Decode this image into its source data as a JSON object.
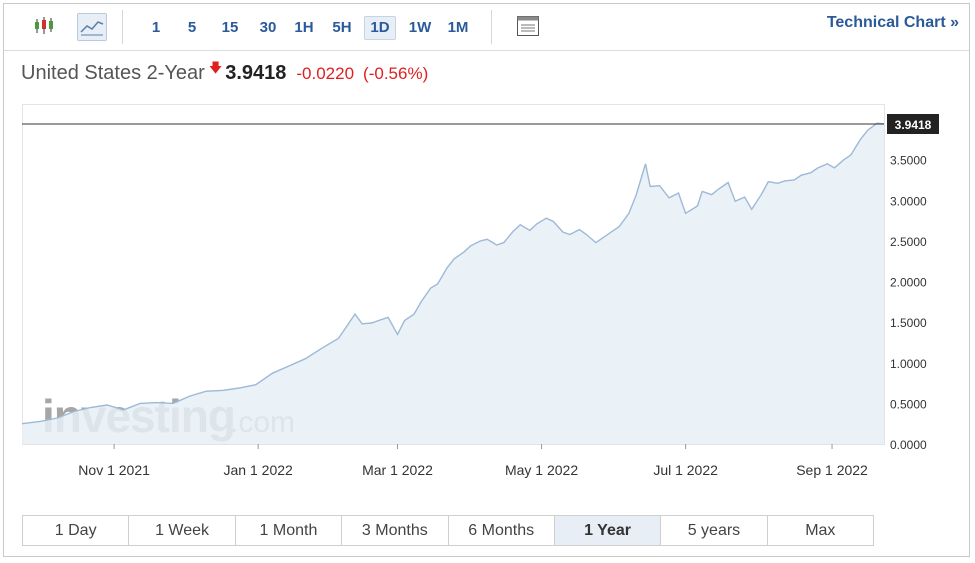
{
  "toolbar": {
    "timeframes": [
      "1",
      "5",
      "15",
      "30",
      "1H",
      "5H",
      "1D",
      "1W",
      "1M"
    ],
    "active_timeframe": "1D",
    "technical_chart_label": "Technical Chart »"
  },
  "quote": {
    "name": "United States 2-Year",
    "last": "3.9418",
    "change": "-0.0220",
    "change_pct": "(-0.56%)",
    "direction": "down"
  },
  "watermark": {
    "brand": "investing",
    "suffix": ".com"
  },
  "ranges": {
    "items": [
      "1 Day",
      "1 Week",
      "1 Month",
      "3 Months",
      "6 Months",
      "1 Year",
      "5 years",
      "Max"
    ],
    "active": "1 Year"
  },
  "colors": {
    "accent": "#2a5a9a",
    "down": "#e01f1f",
    "line": "#9db9d8",
    "fill": "#e6eef6"
  },
  "chart_data": {
    "type": "area",
    "xlabel": "",
    "ylabel": "",
    "ylim": [
      0,
      3.94
    ],
    "y_ticks": [
      "0.0000",
      "0.5000",
      "1.0000",
      "1.5000",
      "2.0000",
      "2.5000",
      "3.0000",
      "3.5000"
    ],
    "x_ticks": [
      "Nov 1 2021",
      "Jan 1 2022",
      "Mar 1 2022",
      "May 1 2022",
      "Jul 1 2022",
      "Sep 1 2022"
    ],
    "x_tick_dates": [
      "2021-11-01",
      "2022-01-01",
      "2022-03-01",
      "2022-05-01",
      "2022-07-01",
      "2022-09-01"
    ],
    "x_range": [
      "2021-09-23",
      "2022-09-23"
    ],
    "last_value_label": "3.9418",
    "series": [
      {
        "x": [
          "2021-09-23",
          "2021-10-01",
          "2021-10-08",
          "2021-10-15",
          "2021-10-22",
          "2021-10-29",
          "2021-11-05",
          "2021-11-12",
          "2021-11-19",
          "2021-11-26",
          "2021-12-03",
          "2021-12-10",
          "2021-12-17",
          "2021-12-24",
          "2021-12-31",
          "2022-01-07",
          "2022-01-14",
          "2022-01-21",
          "2022-01-28",
          "2022-02-04",
          "2022-02-11",
          "2022-02-14",
          "2022-02-18",
          "2022-02-25",
          "2022-03-01",
          "2022-03-04",
          "2022-03-08",
          "2022-03-11",
          "2022-03-15",
          "2022-03-18",
          "2022-03-22",
          "2022-03-25",
          "2022-03-29",
          "2022-04-01",
          "2022-04-05",
          "2022-04-08",
          "2022-04-12",
          "2022-04-15",
          "2022-04-19",
          "2022-04-22",
          "2022-04-26",
          "2022-04-29",
          "2022-05-03",
          "2022-05-06",
          "2022-05-10",
          "2022-05-13",
          "2022-05-17",
          "2022-05-20",
          "2022-05-24",
          "2022-05-27",
          "2022-06-01",
          "2022-06-03",
          "2022-06-07",
          "2022-06-10",
          "2022-06-14",
          "2022-06-16",
          "2022-06-20",
          "2022-06-24",
          "2022-06-28",
          "2022-07-01",
          "2022-07-06",
          "2022-07-08",
          "2022-07-12",
          "2022-07-15",
          "2022-07-19",
          "2022-07-22",
          "2022-07-26",
          "2022-07-29",
          "2022-08-02",
          "2022-08-05",
          "2022-08-09",
          "2022-08-12",
          "2022-08-16",
          "2022-08-19",
          "2022-08-23",
          "2022-08-26",
          "2022-08-30",
          "2022-09-02",
          "2022-09-06",
          "2022-09-09",
          "2022-09-13",
          "2022-09-16",
          "2022-09-20",
          "2022-09-23"
        ],
        "values": [
          0.25,
          0.28,
          0.32,
          0.4,
          0.45,
          0.48,
          0.42,
          0.5,
          0.51,
          0.5,
          0.59,
          0.65,
          0.66,
          0.69,
          0.73,
          0.87,
          0.96,
          1.05,
          1.18,
          1.3,
          1.6,
          1.48,
          1.49,
          1.56,
          1.35,
          1.52,
          1.6,
          1.75,
          1.92,
          1.97,
          2.17,
          2.28,
          2.36,
          2.44,
          2.5,
          2.52,
          2.45,
          2.48,
          2.62,
          2.7,
          2.63,
          2.71,
          2.78,
          2.74,
          2.61,
          2.58,
          2.64,
          2.58,
          2.48,
          2.54,
          2.64,
          2.68,
          2.84,
          3.06,
          3.45,
          3.17,
          3.18,
          3.03,
          3.09,
          2.84,
          2.93,
          3.11,
          3.07,
          3.14,
          3.22,
          2.99,
          3.04,
          2.89,
          3.07,
          3.23,
          3.21,
          3.24,
          3.25,
          3.31,
          3.34,
          3.4,
          3.45,
          3.4,
          3.5,
          3.56,
          3.75,
          3.86,
          3.95,
          3.94
        ]
      }
    ],
    "grid": false
  }
}
